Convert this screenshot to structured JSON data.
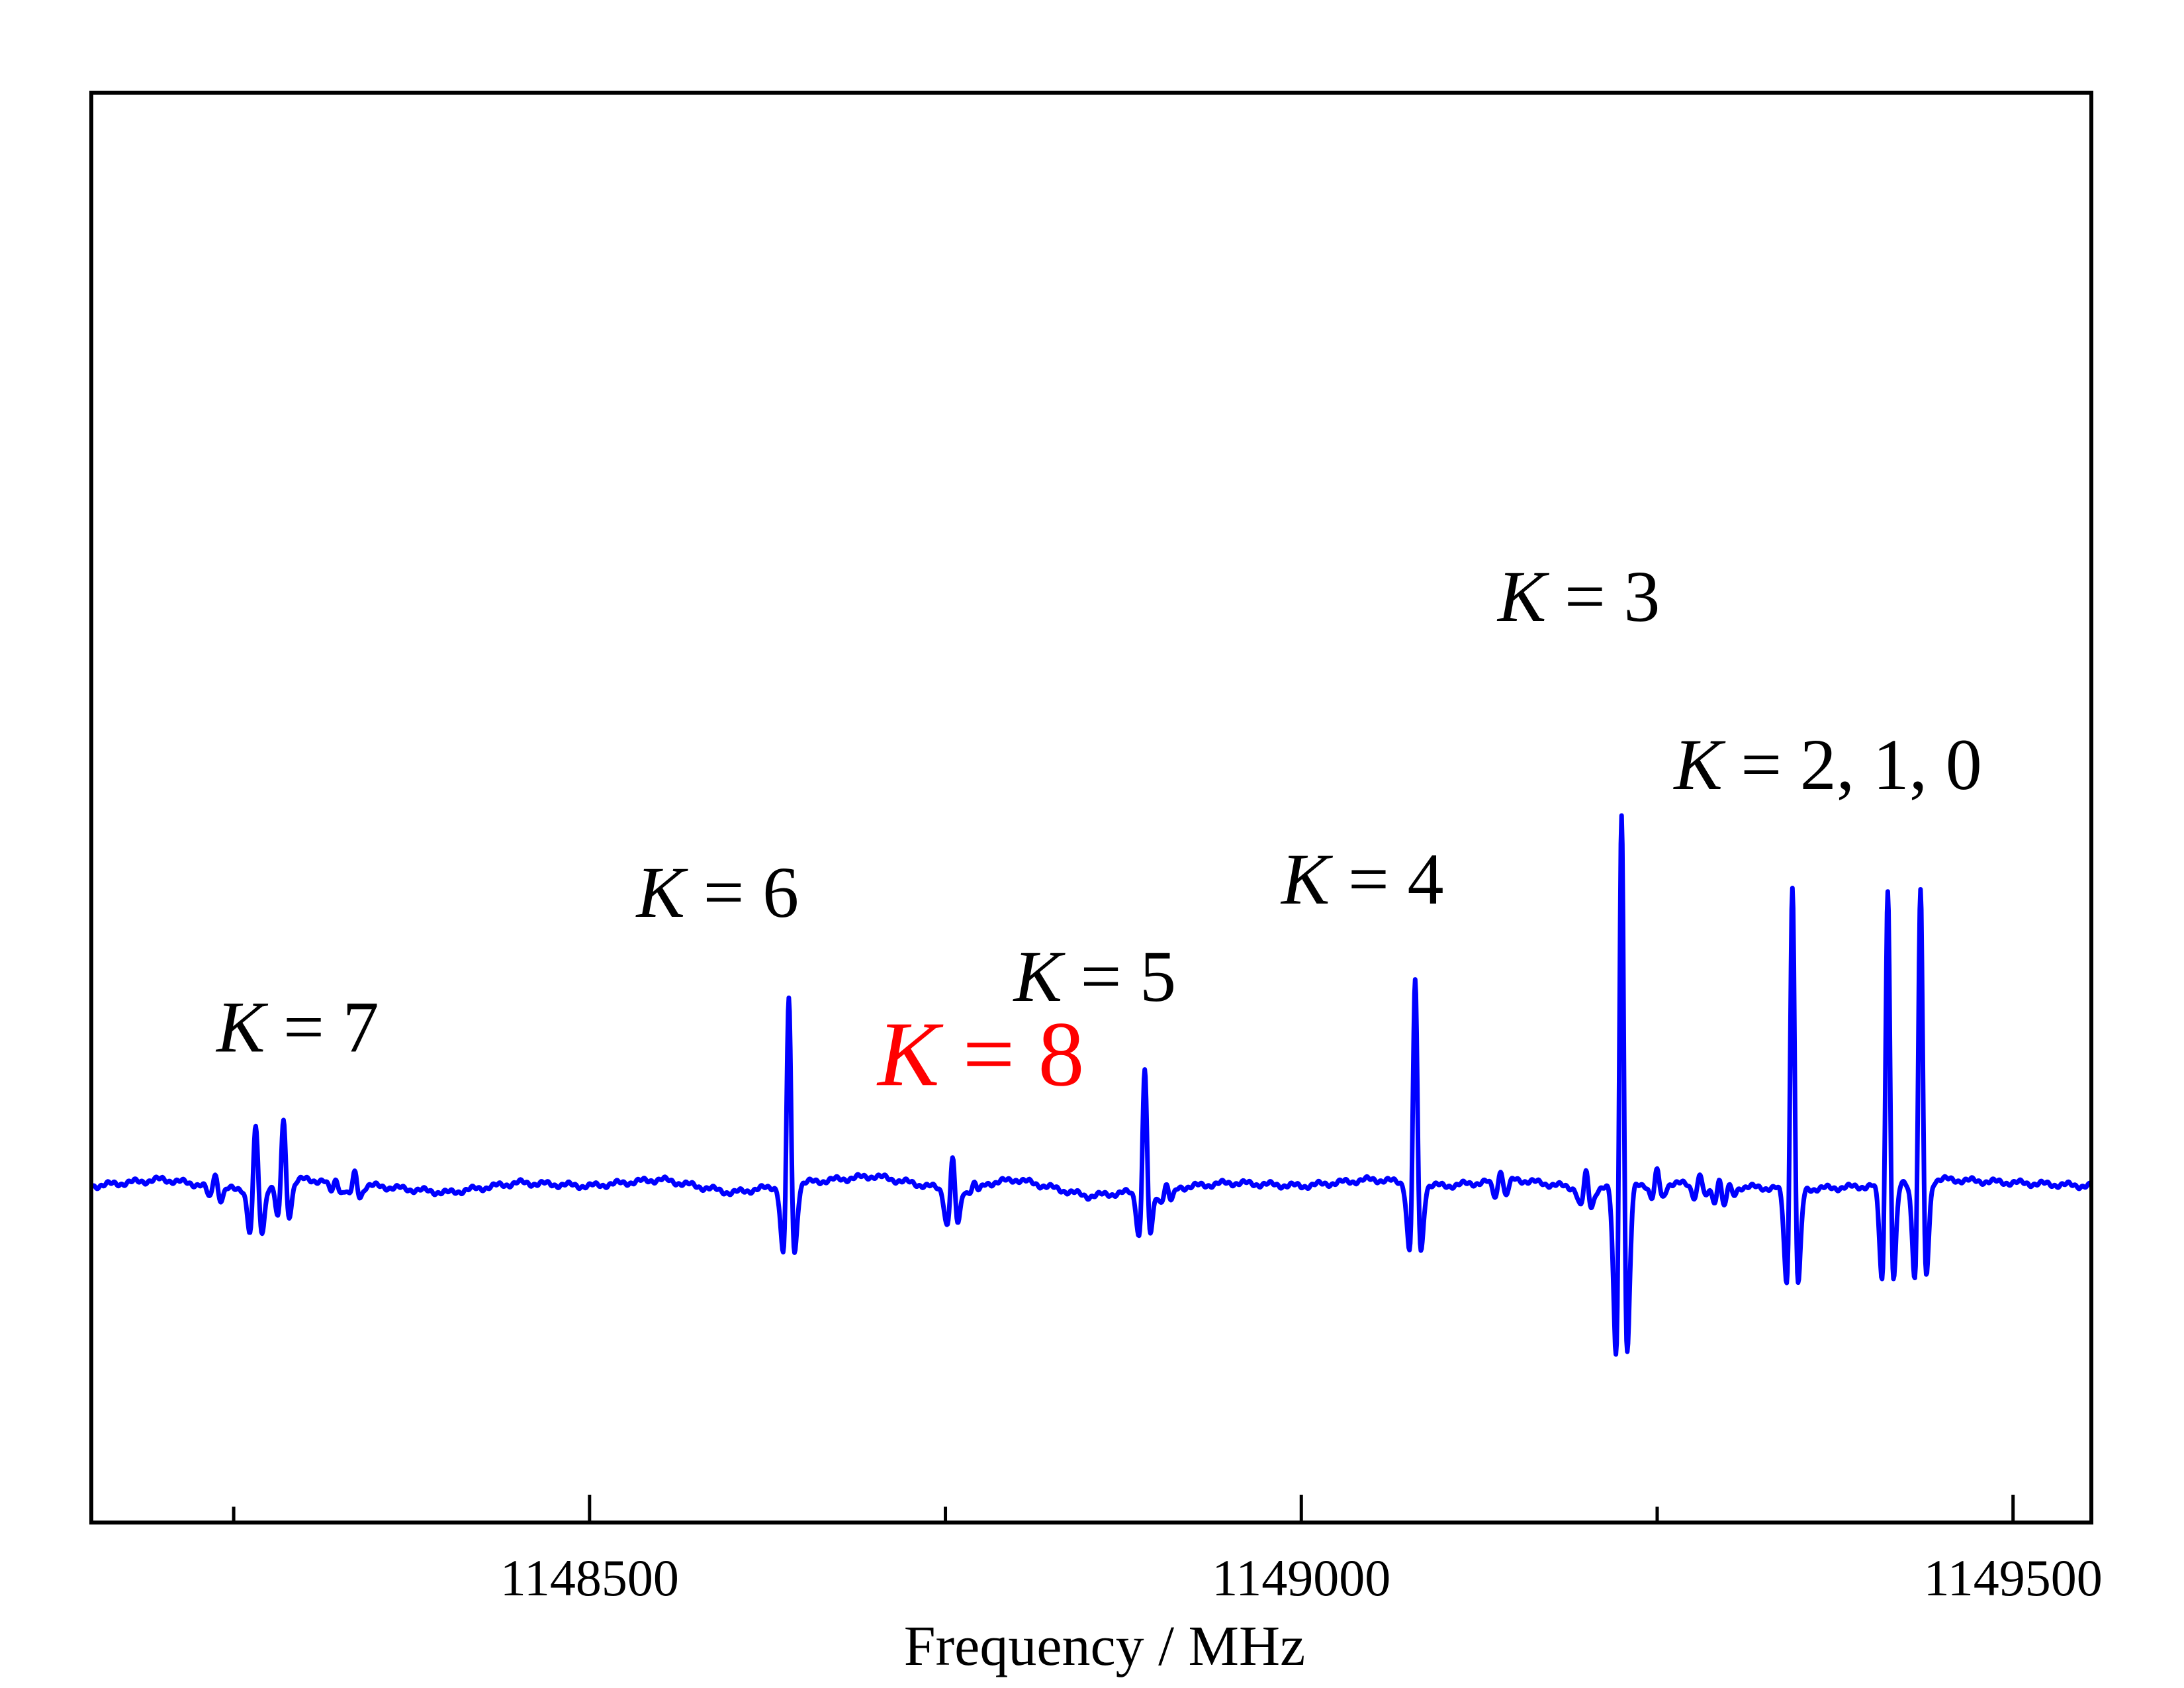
{
  "chart_data": {
    "type": "line",
    "xlabel": "Frequency / MHz",
    "ylabel": "",
    "title": "",
    "xlim": [
      1148150,
      1149555
    ],
    "ylim": [
      -1.0,
      3.25
    ],
    "grid": false,
    "x_ticks_major": [
      1148500,
      1149000,
      1149500
    ],
    "x_ticks_minor": [
      1148250,
      1148750,
      1149250
    ],
    "x_tick_labels": [
      "1148500",
      "1149000",
      "1149500"
    ],
    "series": [
      {
        "color": "#0000ff",
        "baseline": [
          [
            1148150,
            0.0
          ],
          [
            1148200,
            0.02
          ],
          [
            1148250,
            -0.01
          ],
          [
            1148300,
            0.02
          ],
          [
            1148350,
            0.0
          ],
          [
            1148400,
            -0.02
          ],
          [
            1148450,
            0.01
          ],
          [
            1148500,
            0.0
          ],
          [
            1148550,
            0.02
          ],
          [
            1148600,
            -0.02
          ],
          [
            1148650,
            0.01
          ],
          [
            1148700,
            0.03
          ],
          [
            1148750,
            -0.01
          ],
          [
            1148800,
            0.02
          ],
          [
            1148850,
            -0.03
          ],
          [
            1148900,
            -0.01
          ],
          [
            1148950,
            0.01
          ],
          [
            1149000,
            0.0
          ],
          [
            1149050,
            0.02
          ],
          [
            1149100,
            0.0
          ],
          [
            1149150,
            0.02
          ],
          [
            1149200,
            -0.01
          ],
          [
            1149250,
            0.01
          ],
          [
            1149300,
            0.0
          ],
          [
            1149350,
            -0.01
          ],
          [
            1149400,
            0.0
          ],
          [
            1149450,
            0.02
          ],
          [
            1149500,
            0.01
          ],
          [
            1149555,
            0.0
          ]
        ],
        "lines": [
          {
            "x": 1148265,
            "peak": 0.27,
            "trough": -0.12
          },
          {
            "x": 1148267,
            "peak": 0.1,
            "trough": -0.07
          },
          {
            "x": 1148285,
            "peak": 0.27,
            "trough": -0.12
          },
          {
            "x": 1148237,
            "peak": 0.07,
            "trough": -0.04
          },
          {
            "x": 1148322,
            "peak": 0.03,
            "trough": -0.03
          },
          {
            "x": 1148335,
            "peak": 0.06,
            "trough": -0.04
          },
          {
            "x": 1148640,
            "peak": 0.72,
            "trough": -0.25
          },
          {
            "x": 1148755,
            "peak": 0.17,
            "trough": -0.12
          },
          {
            "x": 1148770,
            "peak": 0.02,
            "trough": -0.02
          },
          {
            "x": 1148890,
            "peak": 0.47,
            "trough": -0.16
          },
          {
            "x": 1148905,
            "peak": 0.04,
            "trough": -0.04
          },
          {
            "x": 1149080,
            "peak": 0.77,
            "trough": -0.25
          },
          {
            "x": 1149140,
            "peak": 0.07,
            "trough": -0.05
          },
          {
            "x": 1149200,
            "peak": 0.09,
            "trough": -0.06
          },
          {
            "x": 1149225,
            "peak": 1.52,
            "trough": -0.6
          },
          {
            "x": 1149250,
            "peak": 0.07,
            "trough": -0.05
          },
          {
            "x": 1149280,
            "peak": 0.06,
            "trough": -0.04
          },
          {
            "x": 1149294,
            "peak": 0.07,
            "trough": -0.05
          },
          {
            "x": 1149300,
            "peak": 0.04,
            "trough": -0.03
          },
          {
            "x": 1149345,
            "peak": 1.14,
            "trough": -0.35
          },
          {
            "x": 1149412,
            "peak": 1.12,
            "trough": -0.35
          },
          {
            "x": 1149435,
            "peak": 1.11,
            "trough": -0.35
          }
        ]
      }
    ],
    "annotations": [
      {
        "prefix": "K",
        "text": " = 7",
        "x": 1148295,
        "y": 0.4,
        "color": "#000000"
      },
      {
        "prefix": "K",
        "text": " = 6",
        "x": 1148590,
        "y": 0.8,
        "color": "#000000"
      },
      {
        "prefix": "K",
        "text": " = 8",
        "x": 1148775,
        "y": 0.3,
        "color": "#ff0000"
      },
      {
        "prefix": "K",
        "text": " = 5",
        "x": 1148855,
        "y": 0.55,
        "color": "#000000"
      },
      {
        "prefix": "K",
        "text": " = 4",
        "x": 1149043,
        "y": 0.84,
        "color": "#000000"
      },
      {
        "prefix": "K",
        "text": " = 3",
        "x": 1149195,
        "y": 1.68,
        "color": "#000000"
      },
      {
        "prefix": "K",
        "text": " = 2, 1, 0",
        "x": 1149370,
        "y": 1.18,
        "color": "#000000"
      }
    ]
  }
}
